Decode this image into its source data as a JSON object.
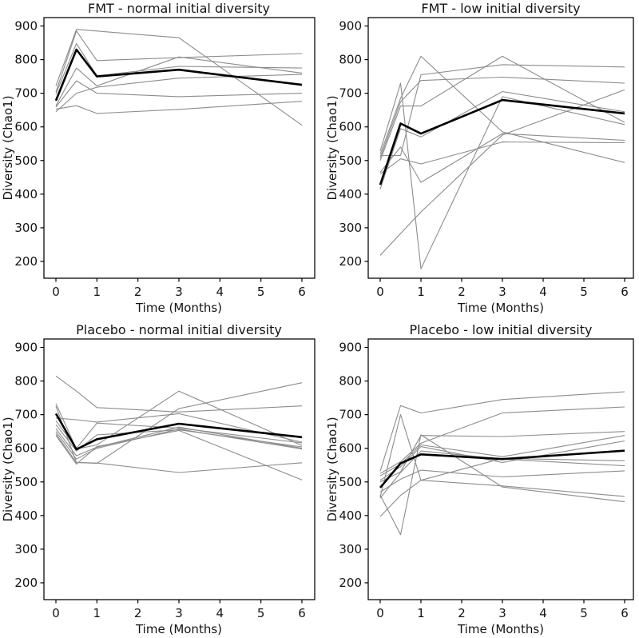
{
  "figure": {
    "kind": "2x2 grid of longitudinal line subplots",
    "background": "#ffffff",
    "subject_line_color": "#8c8c8c",
    "mean_line_color": "#000000",
    "text_color": "#141414"
  },
  "chart_data": [
    {
      "type": "line",
      "title": "FMT - normal initial diversity",
      "xlabel": "Time (Months)",
      "ylabel": "Diversity (Chao1)",
      "x": [
        0,
        0.5,
        1,
        3,
        6
      ],
      "xticks": [
        0,
        1,
        2,
        3,
        4,
        5,
        6
      ],
      "yticks": [
        200,
        300,
        400,
        500,
        600,
        700,
        800,
        900
      ],
      "xlim": [
        -0.3,
        6.35
      ],
      "ylim": [
        150,
        925
      ],
      "grid": false,
      "legend": false,
      "mean": [
        678,
        830,
        750,
        770,
        725
      ],
      "subjects": [
        [
          722,
          890,
          885,
          865,
          605
        ],
        [
          704,
          885,
          797,
          806,
          818
        ],
        [
          698,
          848,
          752,
          780,
          775
        ],
        [
          663,
          775,
          722,
          808,
          760
        ],
        [
          659,
          737,
          700,
          690,
          700
        ],
        [
          653,
          663,
          640,
          652,
          676
        ],
        [
          645,
          700,
          718,
          745,
          756
        ]
      ]
    },
    {
      "type": "line",
      "title": "FMT - low initial diversity",
      "xlabel": "Time (Months)",
      "ylabel": "Diversity (Chao1)",
      "x": [
        0,
        0.5,
        1,
        3,
        6
      ],
      "xticks": [
        0,
        1,
        2,
        3,
        4,
        5,
        6
      ],
      "yticks": [
        200,
        300,
        400,
        500,
        600,
        700,
        800,
        900
      ],
      "xlim": [
        -0.3,
        6.35
      ],
      "ylim": [
        150,
        925
      ],
      "grid": false,
      "legend": false,
      "mean": [
        428,
        610,
        580,
        680,
        640
      ],
      "subjects": [
        [
          528,
          730,
          178,
          690,
          607
        ],
        [
          518,
          685,
          810,
          585,
          494
        ],
        [
          515,
          515,
          755,
          785,
          778
        ],
        [
          508,
          675,
          738,
          748,
          730
        ],
        [
          500,
          662,
          662,
          810,
          613
        ],
        [
          465,
          540,
          435,
          580,
          560
        ],
        [
          460,
          505,
          490,
          555,
          553
        ],
        [
          415,
          595,
          570,
          705,
          645
        ],
        [
          218,
          283,
          347,
          576,
          710
        ]
      ]
    },
    {
      "type": "line",
      "title": "Placebo - normal initial diversity",
      "xlabel": "Time (Months)",
      "ylabel": "Diversity (Chao1)",
      "x": [
        0,
        0.5,
        1,
        3,
        6
      ],
      "xticks": [
        0,
        1,
        2,
        3,
        4,
        5,
        6
      ],
      "yticks": [
        200,
        300,
        400,
        500,
        600,
        700,
        800,
        900
      ],
      "xlim": [
        -0.3,
        6.35
      ],
      "ylim": [
        150,
        925
      ],
      "grid": false,
      "legend": false,
      "mean": [
        703,
        597,
        627,
        673,
        633
      ],
      "subjects": [
        [
          815,
          770,
          721,
          708,
          726
        ],
        [
          733,
          598,
          610,
          770,
          608
        ],
        [
          725,
          558,
          555,
          718,
          795
        ],
        [
          690,
          685,
          678,
          703,
          618
        ],
        [
          682,
          600,
          675,
          660,
          616
        ],
        [
          670,
          592,
          640,
          655,
          604
        ],
        [
          658,
          578,
          603,
          663,
          600
        ],
        [
          650,
          568,
          600,
          657,
          598
        ],
        [
          643,
          558,
          556,
          528,
          557
        ],
        [
          638,
          553,
          605,
          653,
          506
        ]
      ]
    },
    {
      "type": "line",
      "title": "Placebo - low initial diversity",
      "xlabel": "Time (Months)",
      "ylabel": "Diversity (Chao1)",
      "x": [
        0,
        0.5,
        1,
        3,
        6
      ],
      "xticks": [
        0,
        1,
        2,
        3,
        4,
        5,
        6
      ],
      "yticks": [
        200,
        300,
        400,
        500,
        600,
        700,
        800,
        900
      ],
      "xlim": [
        -0.3,
        6.35
      ],
      "ylim": [
        150,
        925
      ],
      "grid": false,
      "legend": false,
      "mean": [
        483,
        555,
        582,
        568,
        593
      ],
      "subjects": [
        [
          532,
          727,
          705,
          745,
          768
        ],
        [
          525,
          560,
          615,
          705,
          723
        ],
        [
          518,
          553,
          610,
          575,
          638
        ],
        [
          505,
          545,
          605,
          558,
          622
        ],
        [
          500,
          530,
          638,
          635,
          650
        ],
        [
          470,
          508,
          535,
          515,
          533
        ],
        [
          461,
          343,
          640,
          485,
          441
        ],
        [
          455,
          700,
          505,
          570,
          563
        ],
        [
          452,
          528,
          592,
          568,
          548
        ],
        [
          397,
          460,
          505,
          488,
          457
        ]
      ]
    }
  ]
}
